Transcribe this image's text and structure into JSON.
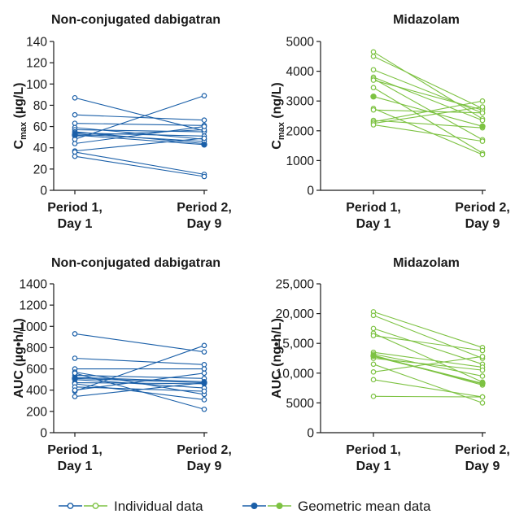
{
  "chart_data": [
    {
      "type": "line",
      "title": "Non-conjugated dabigatran",
      "ylabel": {
        "main": "C",
        "sub": "max",
        "rest": " (µg/L)"
      },
      "categories": [
        [
          "Period 1,",
          "Day 1"
        ],
        [
          "Period 2,",
          "Day 9"
        ]
      ],
      "ylim": [
        0,
        140
      ],
      "yticks": [
        0,
        20,
        40,
        60,
        80,
        100,
        120,
        140
      ],
      "ytick_labels": [
        "0",
        "20",
        "40",
        "60",
        "80",
        "100",
        "120",
        "140"
      ],
      "color": "#1a5fa8",
      "individual": [
        [
          87,
          56
        ],
        [
          71,
          66
        ],
        [
          63,
          61
        ],
        [
          59,
          48
        ],
        [
          57,
          55
        ],
        [
          55,
          44
        ],
        [
          54,
          51
        ],
        [
          53,
          46
        ],
        [
          51,
          57
        ],
        [
          44,
          60
        ],
        [
          48,
          89
        ],
        [
          37,
          49
        ],
        [
          36,
          15
        ],
        [
          32,
          13
        ]
      ],
      "geometric_mean": [
        52,
        43
      ]
    },
    {
      "type": "line",
      "title": "Midazolam",
      "ylabel": {
        "main": "C",
        "sub": "max",
        "rest": " (ng/L)"
      },
      "categories": [
        [
          "Period 1,",
          "Day 1"
        ],
        [
          "Period 2,",
          "Day 9"
        ]
      ],
      "ylim": [
        0,
        5000
      ],
      "yticks": [
        0,
        1000,
        2000,
        3000,
        4000,
        5000
      ],
      "ytick_labels": [
        "0",
        "1000",
        "2000",
        "3000",
        "4000",
        "5000"
      ],
      "color": "#7dc242",
      "individual": [
        [
          4650,
          2400
        ],
        [
          4500,
          2750
        ],
        [
          4050,
          2600
        ],
        [
          3800,
          2350
        ],
        [
          3750,
          1700
        ],
        [
          3700,
          2700
        ],
        [
          3450,
          1250
        ],
        [
          2750,
          1200
        ],
        [
          2700,
          2600
        ],
        [
          2350,
          2100
        ],
        [
          2300,
          3000
        ],
        [
          2250,
          2800
        ],
        [
          2200,
          1650
        ]
      ],
      "geometric_mean": [
        3150,
        2150
      ]
    },
    {
      "type": "line",
      "title": "Non-conjugated dabigatran",
      "ylabel": {
        "main": "AUC (µg•h/L)",
        "sub": "",
        "rest": ""
      },
      "categories": [
        [
          "Period 1,",
          "Day 1"
        ],
        [
          "Period 2,",
          "Day 9"
        ]
      ],
      "ylim": [
        0,
        1400
      ],
      "yticks": [
        0,
        200,
        400,
        600,
        800,
        1000,
        1200,
        1400
      ],
      "ytick_labels": [
        "0",
        "200",
        "400",
        "600",
        "800",
        "1000",
        "1200",
        "1400"
      ],
      "color": "#1a5fa8",
      "individual": [
        [
          930,
          760
        ],
        [
          700,
          640
        ],
        [
          600,
          600
        ],
        [
          570,
          360
        ],
        [
          540,
          510
        ],
        [
          520,
          480
        ],
        [
          500,
          420
        ],
        [
          470,
          460
        ],
        [
          460,
          310
        ],
        [
          430,
          390
        ],
        [
          390,
          820
        ],
        [
          340,
          470
        ],
        [
          560,
          220
        ],
        [
          400,
          560
        ]
      ],
      "geometric_mean": [
        510,
        470
      ]
    },
    {
      "type": "line",
      "title": "Midazolam",
      "ylabel": {
        "main": "AUC (ng•h/L)",
        "sub": "",
        "rest": ""
      },
      "categories": [
        [
          "Period 1,",
          "Day 1"
        ],
        [
          "Period 2,",
          "Day 9"
        ]
      ],
      "ylim": [
        0,
        25000
      ],
      "yticks": [
        0,
        5000,
        10000,
        15000,
        20000,
        25000
      ],
      "ytick_labels": [
        "0",
        "5000",
        "10,000",
        "15,000",
        "20,000",
        "25,000"
      ],
      "color": "#7dc242",
      "individual": [
        [
          20300,
          14300
        ],
        [
          19700,
          12500
        ],
        [
          17500,
          11500
        ],
        [
          16700,
          8500
        ],
        [
          16300,
          13800
        ],
        [
          13500,
          11000
        ],
        [
          13200,
          9500
        ],
        [
          13000,
          8000
        ],
        [
          12800,
          8200
        ],
        [
          12500,
          10500
        ],
        [
          11500,
          5000
        ],
        [
          10200,
          12800
        ],
        [
          8900,
          6000
        ],
        [
          6100,
          6000
        ]
      ],
      "geometric_mean": [
        12900,
        8300
      ]
    }
  ],
  "legend": {
    "individual_label": "Individual data",
    "mean_label": "Geometric mean data",
    "colors": [
      "#1a5fa8",
      "#7dc242"
    ]
  }
}
